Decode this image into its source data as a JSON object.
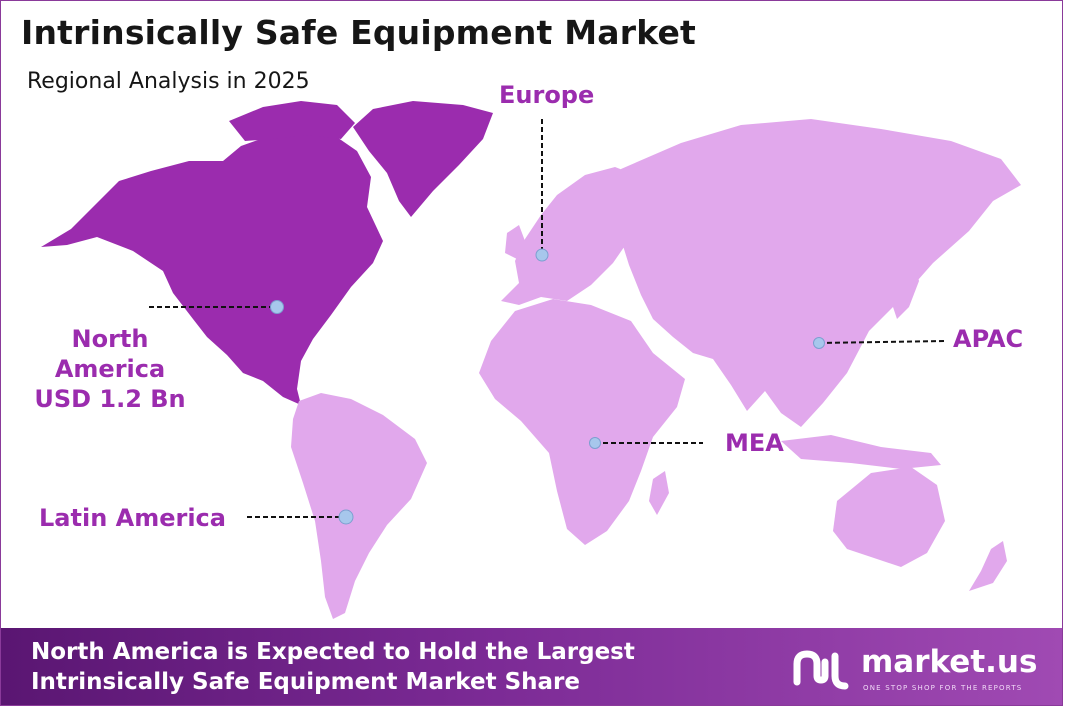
{
  "title": "Intrinsically Safe Equipment Market",
  "subtitle": "Regional Analysis in 2025",
  "colors": {
    "highlight_region": "#9b2cae",
    "other_regions": "#e1a8ec",
    "label_text": "#9b2cae",
    "marker": "#a7c7ec",
    "footer_start": "#5a1672",
    "footer_end": "#a04ab3"
  },
  "regions": {
    "north_america": {
      "name": "North America",
      "value": "USD 1.2 Bn",
      "highlighted": true
    },
    "europe": {
      "name": "Europe"
    },
    "apac": {
      "name": "APAC"
    },
    "mea": {
      "name": "MEA"
    },
    "latin_america": {
      "name": "Latin America"
    }
  },
  "footer": {
    "line1": "North America is Expected to Hold the Largest",
    "line2": "Intrinsically Safe Equipment Market Share"
  },
  "brand": {
    "name": "market.us",
    "tagline": "ONE STOP SHOP FOR THE REPORTS",
    "logo_icon": "market-us-logo-icon"
  }
}
